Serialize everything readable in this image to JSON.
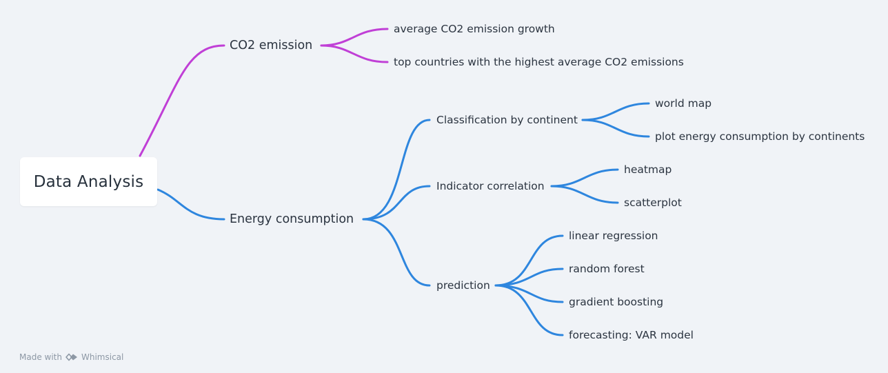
{
  "root": {
    "label": "Data Analysis"
  },
  "colors": {
    "co2_branch": "#c03fd6",
    "energy_branch": "#2e86de",
    "text": "#2b3440",
    "footer": "#8d98a5",
    "card": "#ffffff",
    "background": "#f0f3f7"
  },
  "branches": {
    "co2": {
      "label": "CO2 emission",
      "children": [
        {
          "label": "average CO2 emission growth"
        },
        {
          "label": "top countries with the highest average CO2 emissions"
        }
      ]
    },
    "energy": {
      "label": "Energy consumption",
      "children": [
        {
          "label": "Classification by continent",
          "children": [
            {
              "label": "world map"
            },
            {
              "label": "plot energy consumption by continents"
            }
          ]
        },
        {
          "label": "Indicator correlation",
          "children": [
            {
              "label": "heatmap"
            },
            {
              "label": "scatterplot"
            }
          ]
        },
        {
          "label": "prediction",
          "children": [
            {
              "label": "linear regression"
            },
            {
              "label": "random forest"
            },
            {
              "label": "gradient boosting"
            },
            {
              "label": "forecasting: VAR model"
            }
          ]
        }
      ]
    }
  },
  "footer": {
    "made_with": "Made with",
    "brand": "Whimsical",
    "logo_icon": "whimsical-logo-icon"
  }
}
